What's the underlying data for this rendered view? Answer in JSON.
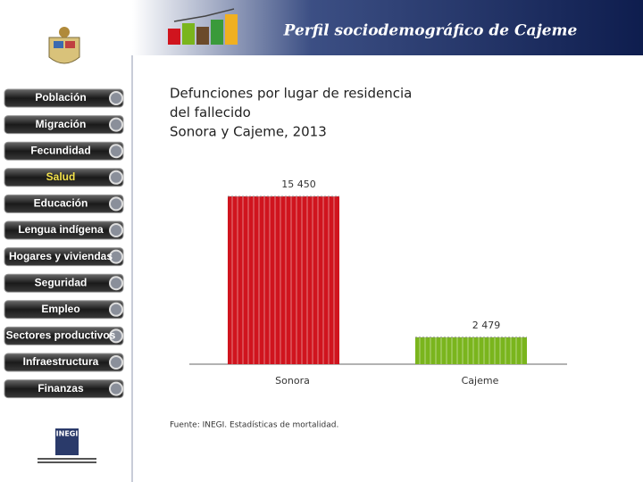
{
  "header": {
    "title": "Perfil sociodemográfico de Cajeme"
  },
  "menu": [
    "Población",
    "Migración",
    "Fecundidad",
    "Salud",
    "Educación",
    "Lengua indígena",
    "Hogares y viviendas",
    "Seguridad",
    "Empleo",
    "Sectores productivos",
    "Infraestructura",
    "Finanzas"
  ],
  "active_menu": "Salud",
  "logo": {
    "text": "INEGI"
  },
  "chart_data": {
    "type": "bar",
    "title": [
      "Defunciones por lugar de residencia",
      "del fallecido",
      "Sonora y Cajeme, 2013"
    ],
    "categories": [
      "Sonora",
      "Cajeme"
    ],
    "values": [
      15450,
      2479
    ],
    "value_labels": [
      "15 450",
      "2 479"
    ],
    "colors": [
      "#d0141e",
      "#7ab51d"
    ],
    "source": "Fuente: INEGI. Estadísticas de mortalidad."
  }
}
